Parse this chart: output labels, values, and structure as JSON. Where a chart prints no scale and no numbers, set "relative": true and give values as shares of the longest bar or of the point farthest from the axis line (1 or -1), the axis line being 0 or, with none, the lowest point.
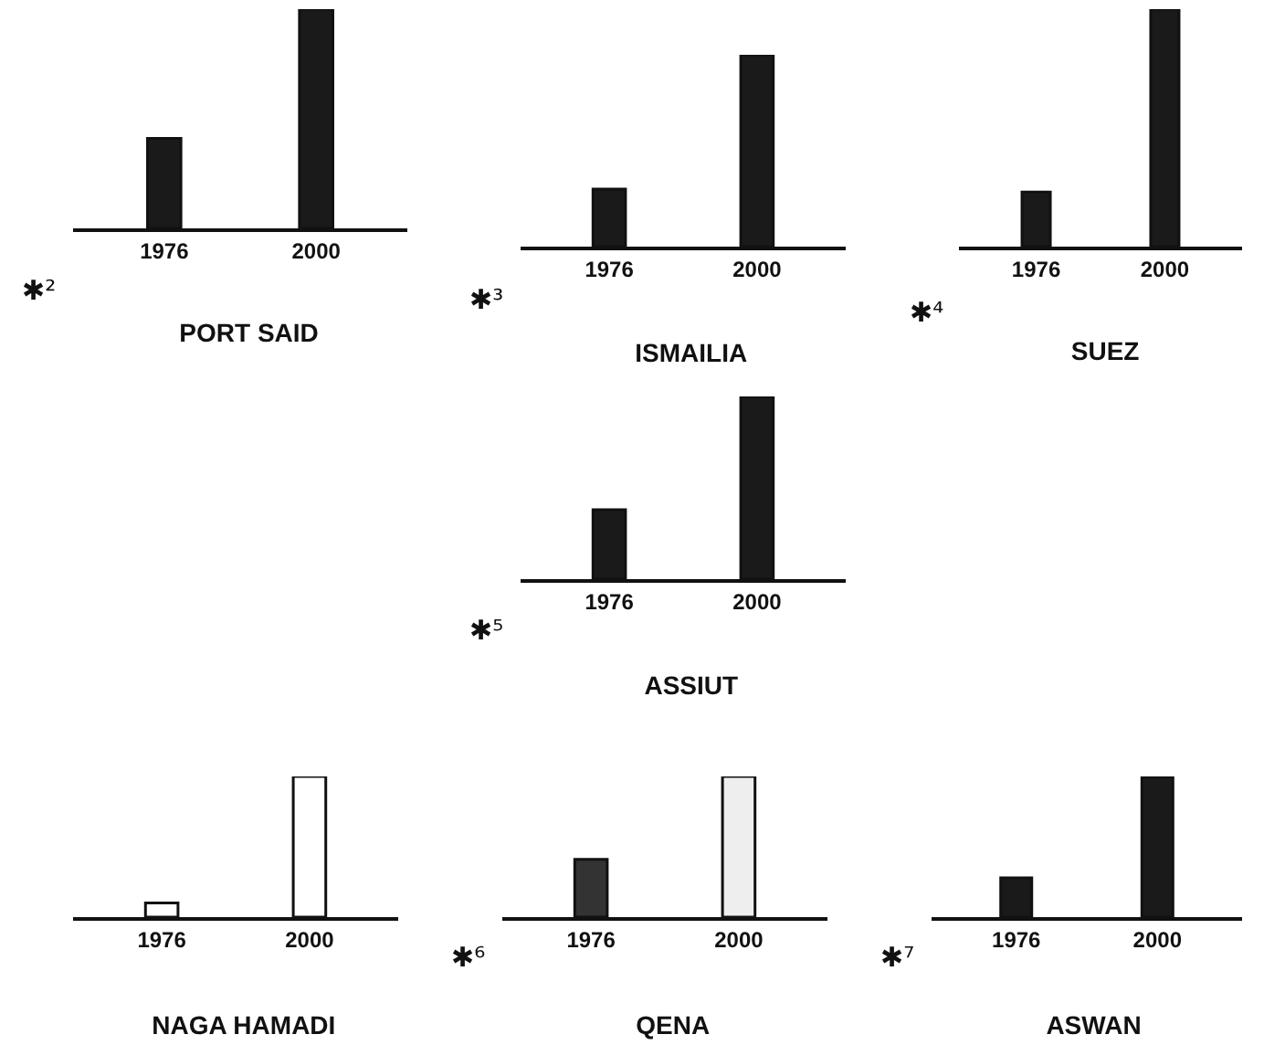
{
  "chart_data": [
    {
      "type": "bar",
      "title": "PORT SAID",
      "annotations": [
        "✱²"
      ],
      "relative": true,
      "categories": [
        "1976",
        "2000"
      ],
      "values": [
        0.41,
        1
      ],
      "colors": [
        "#1a1a1a",
        "#1a1a1a"
      ]
    },
    {
      "type": "bar",
      "title": "ISMAILIA",
      "annotations": [
        "✱³"
      ],
      "relative": true,
      "categories": [
        "1976",
        "2000"
      ],
      "values": [
        0.3,
        1
      ],
      "colors": [
        "#1a1a1a",
        "#1a1a1a"
      ]
    },
    {
      "type": "bar",
      "title": "SUEZ",
      "annotations": [
        "✱⁴"
      ],
      "relative": true,
      "categories": [
        "1976",
        "2000"
      ],
      "values": [
        0.23,
        1
      ],
      "colors": [
        "#1a1a1a",
        "#1a1a1a"
      ]
    },
    {
      "type": "bar",
      "title": "ASSIUT",
      "annotations": [
        "✱⁵"
      ],
      "relative": true,
      "categories": [
        "1976",
        "2000"
      ],
      "values": [
        0.38,
        1
      ],
      "colors": [
        "#1a1a1a",
        "#1a1a1a"
      ]
    },
    {
      "type": "bar",
      "title": "NAGA HAMADI",
      "relative": true,
      "categories": [
        "1976",
        "2000"
      ],
      "values": [
        0.1,
        1
      ],
      "colors": [
        "#ffffff",
        "#ffffff"
      ]
    },
    {
      "type": "bar",
      "title": "QENA",
      "annotations": [
        "✱⁶"
      ],
      "relative": true,
      "categories": [
        "1976",
        "2000"
      ],
      "values": [
        0.41,
        1
      ],
      "colors": [
        "#333333",
        "#eeeeee"
      ]
    },
    {
      "type": "bar",
      "title": "ASWAN",
      "annotations": [
        "✱⁷"
      ],
      "relative": true,
      "categories": [
        "1976",
        "2000"
      ],
      "values": [
        0.28,
        1
      ],
      "colors": [
        "#1a1a1a",
        "#1a1a1a"
      ]
    }
  ]
}
